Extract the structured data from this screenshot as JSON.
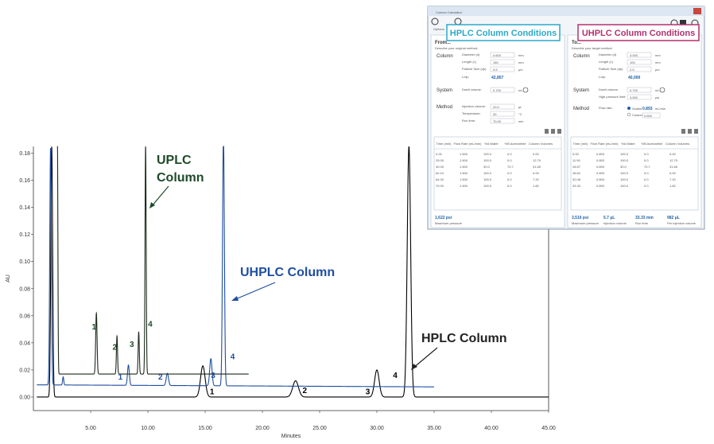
{
  "chart_data": {
    "type": "line",
    "xlabel": "Minutes",
    "ylabel": "AU",
    "xlim": [
      0,
      45
    ],
    "ylim": [
      -0.01,
      0.185
    ],
    "x_ticks": [
      "5.00",
      "10.00",
      "15.00",
      "20.00",
      "25.00",
      "30.00",
      "35.00",
      "40.00",
      "45.00"
    ],
    "x_tick_values": [
      5,
      10,
      15,
      20,
      25,
      30,
      35,
      40,
      45
    ],
    "y_ticks": [
      "0.00",
      "0.02",
      "0.04",
      "0.06",
      "0.08",
      "0.10",
      "0.12",
      "0.14",
      "0.16",
      "0.18"
    ],
    "y_tick_values": [
      0,
      0.02,
      0.04,
      0.06,
      0.08,
      0.1,
      0.12,
      0.14,
      0.16,
      0.18
    ],
    "series": [
      {
        "name": "HPLC Column",
        "color": "#000000",
        "x_range": [
          0.3,
          45
        ],
        "baseline": 0.0,
        "peaks": [
          {
            "x": 1.6,
            "height": 0.185,
            "width": 0.08
          },
          {
            "x": 14.8,
            "height": 0.023,
            "width": 0.2
          },
          {
            "x": 22.9,
            "height": 0.012,
            "width": 0.25
          },
          {
            "x": 30.0,
            "height": 0.02,
            "width": 0.2
          },
          {
            "x": 32.8,
            "height": 0.185,
            "width": 0.15
          }
        ]
      },
      {
        "name": "UHPLC Column",
        "color": "#1f4ea1",
        "x_range": [
          0.3,
          35
        ],
        "baseline": 0.009,
        "baseline_end": 0.0075,
        "peaks": [
          {
            "x": 1.5,
            "height": 0.175,
            "width": 0.07
          },
          {
            "x": 2.6,
            "height": 0.006,
            "width": 0.05
          },
          {
            "x": 8.3,
            "height": 0.015,
            "width": 0.08
          },
          {
            "x": 11.7,
            "height": 0.009,
            "width": 0.1
          },
          {
            "x": 15.5,
            "height": 0.02,
            "width": 0.1
          },
          {
            "x": 16.6,
            "height": 0.185,
            "width": 0.08
          }
        ]
      },
      {
        "name": "UPLC Column",
        "color": "#1b2a1b",
        "x_range": [
          2.1,
          18.8
        ],
        "baseline": 0.017,
        "peaks": [
          {
            "x": 2.1,
            "height": 0.17,
            "width": 0.04
          },
          {
            "x": 5.5,
            "height": 0.045,
            "width": 0.06
          },
          {
            "x": 7.3,
            "height": 0.028,
            "width": 0.05
          },
          {
            "x": 9.2,
            "height": 0.031,
            "width": 0.05
          },
          {
            "x": 9.8,
            "height": 0.168,
            "width": 0.05
          }
        ]
      }
    ],
    "annotations": [
      {
        "text": "UPLC Column",
        "color": "#1e4a2a"
      },
      {
        "text": "UHPLC Column",
        "color": "#1f4ea1"
      },
      {
        "text": "HPLC Column",
        "color": "#222222"
      }
    ],
    "peak_labels": [
      {
        "text": "1",
        "x": 5.3,
        "y": 0.05,
        "color": "#1e4a2a"
      },
      {
        "text": "2",
        "x": 7.1,
        "y": 0.035,
        "color": "#1e4a2a"
      },
      {
        "text": "3",
        "x": 8.6,
        "y": 0.037,
        "color": "#1e4a2a"
      },
      {
        "text": "4",
        "x": 10.2,
        "y": 0.052,
        "color": "#1e4a2a"
      },
      {
        "text": "1",
        "x": 7.6,
        "y": 0.013,
        "color": "#1f4ea1"
      },
      {
        "text": "2",
        "x": 11.1,
        "y": 0.013,
        "color": "#1f4ea1"
      },
      {
        "text": "3",
        "x": 15.7,
        "y": 0.014,
        "color": "#1f4ea1"
      },
      {
        "text": "4",
        "x": 17.4,
        "y": 0.028,
        "color": "#1f4ea1"
      },
      {
        "text": "1",
        "x": 15.6,
        "y": 0.002,
        "color": "#000000"
      },
      {
        "text": "2",
        "x": 23.7,
        "y": 0.003,
        "color": "#000000"
      },
      {
        "text": "3",
        "x": 29.2,
        "y": 0.002,
        "color": "#000000"
      },
      {
        "text": "4",
        "x": 31.6,
        "y": 0.014,
        "color": "#000000"
      }
    ]
  },
  "calculator": {
    "window_title": "Column Calculator",
    "options_label": "Options",
    "left": {
      "title": "HPLC Column Conditions",
      "from_label": "From...",
      "subtitle": "Describe your original method:",
      "column_label": "Column",
      "diameter_label": "Diameter (d)",
      "diameter": "4.600",
      "diameter_unit": "mm",
      "length_label": "Length (L)",
      "length": "150",
      "length_unit": "mm",
      "particle_label": "Particle Size (dp)",
      "particle": "3.5",
      "particle_unit": "μm",
      "ldp_label": "L/dp:",
      "ldp": "42,857",
      "system_label": "System",
      "dwell_label": "Dwell volume:",
      "dwell": "0.700",
      "dwell_unit": "mL",
      "method_label": "Method",
      "injection_label": "Injection volume:",
      "injection": "20.0",
      "injection_unit": "μL",
      "temperature_label": "Temperature:",
      "temperature": "30",
      "temperature_unit": "°C",
      "runtime_label": "Run time:",
      "runtime": "70.00",
      "runtime_unit": "min",
      "table_headers": [
        "Time (min)",
        "Flow Rate (mL/min)",
        "%A Water",
        "%B Acetonitrile",
        "Column Volumes"
      ],
      "table_rows": [
        [
          "0.00",
          "1.500",
          "100.0",
          "0.0",
          "0.00"
        ],
        [
          "25.00",
          "1.500",
          "100.0",
          "0.0",
          "12.79"
        ],
        [
          "40.00",
          "1.500",
          "30.0",
          "70.7",
          "31.65"
        ],
        [
          "60.10",
          "1.500",
          "100.0",
          "0.0",
          "0.00"
        ],
        [
          "64.00",
          "1.500",
          "100.0",
          "0.0",
          "7.20"
        ],
        [
          "70.00",
          "1.500",
          "100.0",
          "0.0",
          "1.82"
        ]
      ],
      "pressure": "1,622 psi",
      "pressure_label": "Maximum pressure"
    },
    "right": {
      "title": "UHPLC Column Conditions",
      "to_label": "To...",
      "subtitle": "Describe your target method:",
      "column_label": "Column",
      "diameter_label": "Diameter (d)",
      "diameter": "3.000",
      "diameter_unit": "mm",
      "length_label": "Length (L)",
      "length": "100",
      "length_unit": "mm",
      "particle_label": "Particle Size (dp)",
      "particle": "2.5",
      "particle_unit": "μm",
      "ldp_label": "L/dp:",
      "ldp": "40,000",
      "system_label": "System",
      "dwell_label": "Dwell volume:",
      "dwell": "0.700",
      "dwell_unit": "mL",
      "pressure_limit_label": "High pressure limit:",
      "pressure_limit": "3,500",
      "pressure_limit_unit": "psi",
      "method_label": "Method",
      "flow_label": "Flow rate:",
      "flow_scaled_label": "Scaled",
      "flow_scaled": "0.893",
      "flow_unit": "mL/min",
      "flow_custom_label": "Custom",
      "flow_custom": "0.600",
      "table_headers": [
        "Time (min)",
        "Flow Rate (mL/min)",
        "%A Water",
        "%B Acetonitrile",
        "Column Volumes"
      ],
      "table_rows": [
        [
          "0.00",
          "0.893",
          "100.0",
          "0.0",
          "0.00"
        ],
        [
          "11.90",
          "0.893",
          "100.0",
          "0.0",
          "12.79"
        ],
        [
          "28.57",
          "0.893",
          "30.0",
          "70.7",
          "31.65"
        ],
        [
          "28.62",
          "0.893",
          "100.0",
          "0.0",
          "0.00"
        ],
        [
          "32.08",
          "0.893",
          "100.0",
          "0.0",
          "7.20"
        ],
        [
          "33.33",
          "0.893",
          "100.0",
          "0.0",
          "1.82"
        ]
      ],
      "footer": [
        {
          "value": "3,516 psi",
          "label": "Maximum pressure"
        },
        {
          "value": "5.7 μL",
          "label": "Injection volume"
        },
        {
          "value": "33.33 min",
          "label": "Run time"
        },
        {
          "value": "982 μL",
          "label": "Per injection volume"
        }
      ]
    }
  }
}
